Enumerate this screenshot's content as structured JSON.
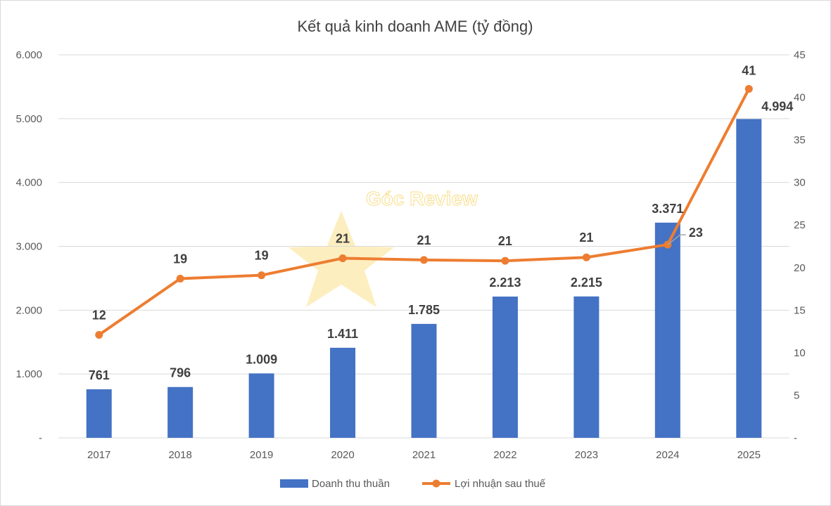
{
  "chart_data": {
    "type": "bar+line",
    "title": "Kết quả kinh doanh AME (tỷ đồng)",
    "categories": [
      "2017",
      "2018",
      "2019",
      "2020",
      "2021",
      "2022",
      "2023",
      "2024",
      "2025"
    ],
    "series": [
      {
        "name": "Doanh thu thuần",
        "type": "bar",
        "axis": "left",
        "color": "#4472c4",
        "values": [
          761,
          796,
          1009,
          1411,
          1785,
          2213,
          2215,
          3371,
          4994
        ],
        "labels": [
          "761",
          "796",
          "1.009",
          "1.411",
          "1.785",
          "2.213",
          "2.215",
          "3.371",
          "4.994"
        ]
      },
      {
        "name": "Lợi nhuận sau thuế",
        "type": "line",
        "axis": "right",
        "color": "#ed7d31",
        "values": [
          12.1,
          18.7,
          19.1,
          21.1,
          20.9,
          20.8,
          21.2,
          22.7,
          41
        ],
        "labels": [
          "12",
          "19",
          "19",
          "21",
          "21",
          "21",
          "21",
          "23",
          "41"
        ]
      }
    ],
    "y_left": {
      "range": [
        0,
        6000
      ],
      "ticks": [
        "-",
        "1.000",
        "2.000",
        "3.000",
        "4.000",
        "5.000",
        "6.000"
      ]
    },
    "y_right": {
      "range": [
        0,
        45
      ],
      "ticks": [
        "-",
        "5",
        "10",
        "15",
        "20",
        "25",
        "30",
        "35",
        "40",
        "45"
      ]
    },
    "grid": true,
    "legend": "bottom",
    "watermark": "Góc Review"
  }
}
